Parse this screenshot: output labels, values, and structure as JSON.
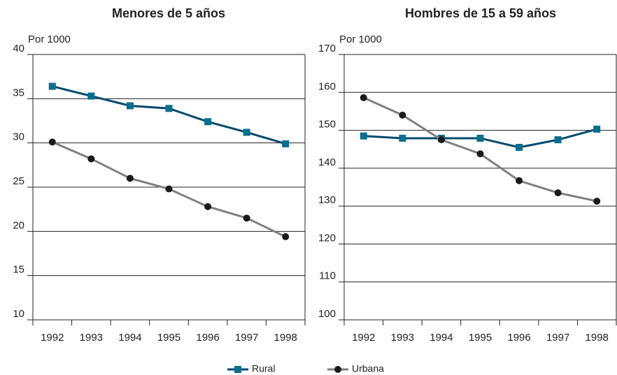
{
  "chart_data": [
    {
      "type": "line",
      "title": "Menores de 5 años",
      "y_label": "Por 1000",
      "categories": [
        "1992",
        "1993",
        "1994",
        "1995",
        "1996",
        "1997",
        "1998"
      ],
      "ylim": [
        10,
        40
      ],
      "yticks": [
        10,
        15,
        20,
        25,
        30,
        35,
        40
      ],
      "grid": true,
      "series": [
        {
          "name": "Rural",
          "color": "#004a6e",
          "marker": "square",
          "values": [
            36.4,
            35.3,
            34.2,
            33.9,
            32.4,
            31.2,
            29.9
          ]
        },
        {
          "name": "Urbana",
          "color": "#808080",
          "marker": "circle",
          "values": [
            30.1,
            28.2,
            26.0,
            24.8,
            22.8,
            21.5,
            19.4
          ]
        }
      ]
    },
    {
      "type": "line",
      "title": "Hombres de 15 a 59 años",
      "y_label": "Por 1000",
      "categories": [
        "1992",
        "1993",
        "1994",
        "1995",
        "1996",
        "1997",
        "1998"
      ],
      "ylim": [
        100,
        170
      ],
      "yticks": [
        100,
        110,
        120,
        130,
        140,
        150,
        160,
        170
      ],
      "grid": true,
      "series": [
        {
          "name": "Rural",
          "color": "#004a6e",
          "marker": "square",
          "values": [
            148.5,
            147.9,
            147.9,
            147.9,
            145.5,
            147.5,
            150.3
          ]
        },
        {
          "name": "Urbana",
          "color": "#808080",
          "marker": "circle",
          "values": [
            158.6,
            154.0,
            147.5,
            143.8,
            136.7,
            133.5,
            131.3
          ]
        }
      ]
    }
  ]
}
